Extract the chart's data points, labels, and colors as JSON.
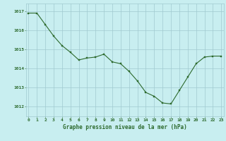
{
  "x": [
    0,
    1,
    2,
    3,
    4,
    5,
    6,
    7,
    8,
    9,
    10,
    11,
    12,
    13,
    14,
    15,
    16,
    17,
    18,
    19,
    20,
    21,
    22,
    23
  ],
  "y": [
    1016.9,
    1016.9,
    1016.3,
    1015.7,
    1015.2,
    1014.85,
    1014.45,
    1014.55,
    1014.6,
    1014.75,
    1014.35,
    1014.25,
    1013.85,
    1013.35,
    1012.75,
    1012.55,
    1012.2,
    1012.15,
    1012.85,
    1013.55,
    1014.25,
    1014.6,
    1014.65,
    1014.65
  ],
  "line_color": "#2d6a2d",
  "marker_color": "#2d6a2d",
  "bg_color": "#c8eef0",
  "grid_color": "#a0cad0",
  "text_color": "#2d6a2d",
  "title": "Graphe pression niveau de la mer (hPa)",
  "ylabel_ticks": [
    1012,
    1013,
    1014,
    1015,
    1016,
    1017
  ],
  "xlabel_ticks": [
    0,
    1,
    2,
    3,
    4,
    5,
    6,
    7,
    8,
    9,
    10,
    11,
    12,
    13,
    14,
    15,
    16,
    17,
    18,
    19,
    20,
    21,
    22,
    23
  ],
  "ylim": [
    1011.5,
    1017.4
  ],
  "xlim": [
    -0.3,
    23.3
  ]
}
